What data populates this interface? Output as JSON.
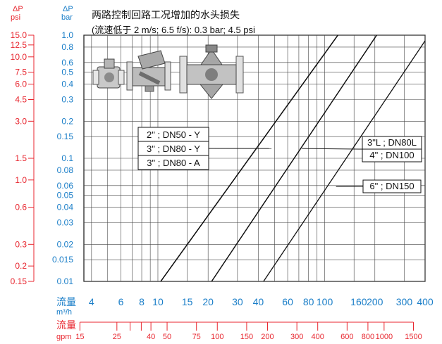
{
  "chart_data": {
    "type": "line",
    "title": "两路控制回路工况增加的水头损失",
    "subtitle": "(流速低于 2 m/s; 6.5 f/s): 0.3 bar; 4.5 psi",
    "x_scale": "log",
    "y_scale": "log",
    "xlim": [
      3.6,
      400
    ],
    "ylim": [
      0.01,
      1.0
    ],
    "grid": true,
    "ylabel_bar": "ΔP",
    "ylabel_bar_unit": "bar",
    "ylabel_psi": "ΔP",
    "ylabel_psi_unit": "psi",
    "xlabel_m3h": "流量",
    "xlabel_m3h_unit": "m³/h",
    "xlabel_gpm": "流量",
    "xlabel_gpm_unit": "gpm",
    "x_ticks_m3h": [
      {
        "value": 4,
        "label": "4"
      },
      {
        "value": 6,
        "label": "6"
      },
      {
        "value": 8,
        "label": "8"
      },
      {
        "value": 10,
        "label": "10"
      },
      {
        "value": 15,
        "label": "15"
      },
      {
        "value": 20,
        "label": "20"
      },
      {
        "value": 30,
        "label": "30"
      },
      {
        "value": 40,
        "label": "40"
      },
      {
        "value": 60,
        "label": "60"
      },
      {
        "value": 80,
        "label": "80"
      },
      {
        "value": 100,
        "label": "100"
      },
      {
        "value": 160,
        "label": "160"
      },
      {
        "value": 200,
        "label": "200"
      },
      {
        "value": 300,
        "label": "300"
      },
      {
        "value": 400,
        "label": "400"
      }
    ],
    "x_gridlines_m3h": [
      4,
      5,
      6,
      7,
      8,
      9,
      10,
      15,
      20,
      30,
      40,
      50,
      60,
      70,
      80,
      90,
      100,
      150,
      200,
      300,
      400
    ],
    "y_ticks_bar": [
      {
        "value": 1.0,
        "label": "1.0"
      },
      {
        "value": 0.8,
        "label": "0.8"
      },
      {
        "value": 0.6,
        "label": "0.6"
      },
      {
        "value": 0.5,
        "label": "0.5"
      },
      {
        "value": 0.4,
        "label": "0.4"
      },
      {
        "value": 0.3,
        "label": "0.3"
      },
      {
        "value": 0.2,
        "label": "0.2"
      },
      {
        "value": 0.15,
        "label": "0.15"
      },
      {
        "value": 0.1,
        "label": "0.1"
      },
      {
        "value": 0.08,
        "label": "0.08"
      },
      {
        "value": 0.06,
        "label": "0.06"
      },
      {
        "value": 0.05,
        "label": "0.05"
      },
      {
        "value": 0.04,
        "label": "0.04"
      },
      {
        "value": 0.03,
        "label": "0.03"
      },
      {
        "value": 0.02,
        "label": "0.02"
      },
      {
        "value": 0.015,
        "label": "0.015"
      },
      {
        "value": 0.01,
        "label": "0.01"
      }
    ],
    "y_gridlines_bar": [
      0.01,
      0.015,
      0.02,
      0.03,
      0.04,
      0.05,
      0.06,
      0.08,
      0.1,
      0.15,
      0.2,
      0.3,
      0.4,
      0.5,
      0.6,
      0.8,
      1.0
    ],
    "y_ticks_psi": [
      {
        "value": 15.0,
        "label": "15.0"
      },
      {
        "value": 12.5,
        "label": "12.5"
      },
      {
        "value": 10.0,
        "label": "10.0"
      },
      {
        "value": 7.5,
        "label": "7.5"
      },
      {
        "value": 6.0,
        "label": "6.0"
      },
      {
        "value": 4.5,
        "label": "4.5"
      },
      {
        "value": 3.0,
        "label": "3.0"
      },
      {
        "value": 1.5,
        "label": "1.5"
      },
      {
        "value": 1.0,
        "label": "1.0"
      },
      {
        "value": 0.6,
        "label": "0.6"
      },
      {
        "value": 0.3,
        "label": "0.3"
      },
      {
        "value": 0.2,
        "label": "0.2"
      },
      {
        "value": 0.15,
        "label": "0.15"
      }
    ],
    "x_ticks_gpm": [
      {
        "value": 15,
        "label": "15"
      },
      {
        "value": 25,
        "label": "25"
      },
      {
        "value": 40,
        "label": "40"
      },
      {
        "value": 50,
        "label": "50"
      },
      {
        "value": 75,
        "label": "75"
      },
      {
        "value": 100,
        "label": "100"
      },
      {
        "value": 150,
        "label": "150"
      },
      {
        "value": 200,
        "label": "200"
      },
      {
        "value": 300,
        "label": "300"
      },
      {
        "value": 400,
        "label": "400"
      },
      {
        "value": 600,
        "label": "600"
      },
      {
        "value": 800,
        "label": "800"
      },
      {
        "value": 1000,
        "label": "1000"
      },
      {
        "value": 1500,
        "label": "1500"
      }
    ],
    "gpm_minor_ticks": [
      30,
      35
    ],
    "series": [
      {
        "name": "2\" ; DN50 - Y",
        "points": [
          [
            10.4,
            0.01
          ],
          [
            120,
            1.0
          ]
        ]
      },
      {
        "name": "3\" ; DN80 - Y",
        "points": [
          [
            10.4,
            0.01
          ],
          [
            120,
            1.0
          ]
        ]
      },
      {
        "name": "3\" ; DN80 - A",
        "points": [
          [
            10.4,
            0.01
          ],
          [
            120,
            1.0
          ]
        ]
      },
      {
        "name": "3\"L ; DN80L",
        "points": [
          [
            21,
            0.01
          ],
          [
            205,
            1.0
          ]
        ]
      },
      {
        "name": "4\" ; DN100",
        "points": [
          [
            21,
            0.01
          ],
          [
            205,
            1.0
          ]
        ]
      },
      {
        "name": "6\" ; DN150",
        "points": [
          [
            43,
            0.01
          ],
          [
            400,
            0.9
          ]
        ]
      }
    ],
    "legend_groups": [
      {
        "labels": [
          "2\" ; DN50 - Y",
          "3\" ; DN80 - Y",
          "3\" ; DN80 - A"
        ],
        "leader_to": [
          48,
          0.12
        ]
      },
      {
        "labels": [
          "3\"L ; DN80L",
          "4\" ; DN100"
        ],
        "leader_to": [
          73,
          0.12
        ]
      },
      {
        "labels": [
          "6\" ; DN150"
        ],
        "leader_to": [
          117,
          0.059
        ]
      }
    ]
  },
  "colors": {
    "red": "#e8262f",
    "blue": "#1a7ec8",
    "line": "#111111",
    "grid": "#444444"
  }
}
